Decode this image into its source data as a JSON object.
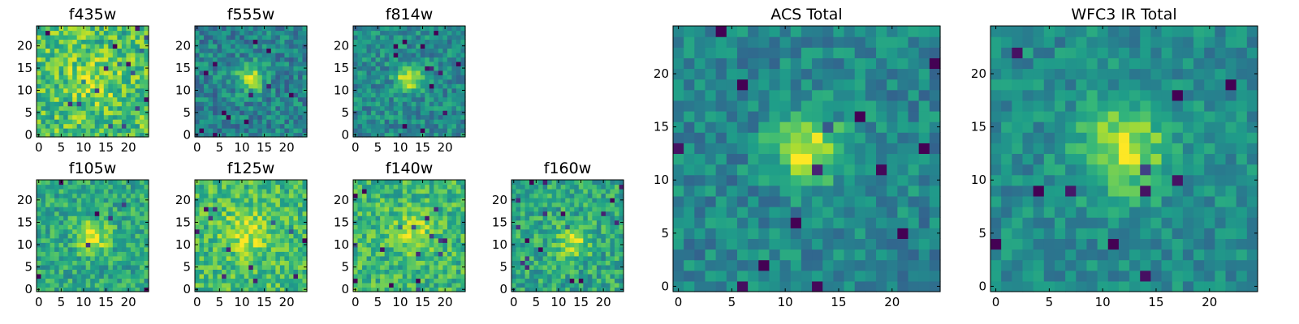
{
  "colormap": {
    "name": "viridis",
    "stops": [
      "#440154",
      "#482878",
      "#3e4989",
      "#31688e",
      "#26828e",
      "#1f9e89",
      "#35b779",
      "#6ece58",
      "#b5de2b",
      "#fde725"
    ]
  },
  "chart_data": [
    {
      "type": "heatmap",
      "title": "f435w",
      "image_size": [
        25,
        25
      ],
      "xlim": [
        0,
        24
      ],
      "ylim": [
        0,
        24
      ],
      "xticks": [
        0,
        5,
        10,
        15,
        20
      ],
      "yticks": [
        0,
        5,
        10,
        15,
        20
      ],
      "xticklabels": [
        "0",
        "5",
        "10",
        "15",
        "20"
      ],
      "yticklabels": [
        "0",
        "5",
        "10",
        "15",
        "20"
      ],
      "source": {
        "center": [
          12,
          12
        ],
        "peak": 0.18,
        "sigma": 4,
        "background": 0.7,
        "noise": 0.22,
        "seed": 11
      }
    },
    {
      "type": "heatmap",
      "title": "f555w",
      "image_size": [
        25,
        25
      ],
      "xlim": [
        0,
        24
      ],
      "ylim": [
        0,
        24
      ],
      "xticks": [
        0,
        5,
        10,
        15,
        20
      ],
      "yticks": [
        0,
        5,
        10,
        15,
        20
      ],
      "xticklabels": [
        "0",
        "5",
        "10",
        "15",
        "20"
      ],
      "yticklabels": [
        "0",
        "5",
        "10",
        "15",
        "20"
      ],
      "source": {
        "center": [
          12,
          13
        ],
        "peak": 0.45,
        "sigma": 2.2,
        "background": 0.45,
        "noise": 0.18,
        "seed": 23
      }
    },
    {
      "type": "heatmap",
      "title": "f814w",
      "image_size": [
        25,
        25
      ],
      "xlim": [
        0,
        24
      ],
      "ylim": [
        0,
        24
      ],
      "xticks": [
        0,
        5,
        10,
        15,
        20
      ],
      "yticks": [
        0,
        5,
        10,
        15,
        20
      ],
      "xticklabels": [
        "0",
        "5",
        "10",
        "15",
        "20"
      ],
      "yticklabels": [
        "0",
        "5",
        "10",
        "15",
        "20"
      ],
      "source": {
        "center": [
          12,
          13
        ],
        "peak": 0.5,
        "sigma": 2,
        "background": 0.48,
        "noise": 0.17,
        "seed": 37
      }
    },
    {
      "type": "heatmap",
      "title": "f105w",
      "image_size": [
        25,
        25
      ],
      "xlim": [
        0,
        24
      ],
      "ylim": [
        0,
        24
      ],
      "xticks": [
        0,
        5,
        10,
        15,
        20
      ],
      "yticks": [
        0,
        5,
        10,
        15,
        20
      ],
      "xticklabels": [
        "0",
        "5",
        "10",
        "15",
        "20"
      ],
      "yticklabels": [
        "0",
        "5",
        "10",
        "15",
        "20"
      ],
      "source": {
        "center": [
          12,
          12
        ],
        "peak": 0.35,
        "sigma": 2.5,
        "background": 0.6,
        "noise": 0.17,
        "seed": 41
      }
    },
    {
      "type": "heatmap",
      "title": "f125w",
      "image_size": [
        25,
        25
      ],
      "xlim": [
        0,
        24
      ],
      "ylim": [
        0,
        24
      ],
      "xticks": [
        0,
        5,
        10,
        15,
        20
      ],
      "yticks": [
        0,
        5,
        10,
        15,
        20
      ],
      "xticklabels": [
        "0",
        "5",
        "10",
        "15",
        "20"
      ],
      "yticklabels": [
        "0",
        "5",
        "10",
        "15",
        "20"
      ],
      "source": {
        "center": [
          11,
          13
        ],
        "peak": 0.25,
        "sigma": 3.5,
        "background": 0.68,
        "noise": 0.18,
        "seed": 53
      }
    },
    {
      "type": "heatmap",
      "title": "f140w",
      "image_size": [
        25,
        25
      ],
      "xlim": [
        0,
        24
      ],
      "ylim": [
        0,
        24
      ],
      "xticks": [
        0,
        5,
        10,
        15,
        20
      ],
      "yticks": [
        0,
        5,
        10,
        15,
        20
      ],
      "xticklabels": [
        "0",
        "5",
        "10",
        "15",
        "20"
      ],
      "yticklabels": [
        "0",
        "5",
        "10",
        "15",
        "20"
      ],
      "source": {
        "center": [
          13,
          13
        ],
        "peak": 0.25,
        "sigma": 3,
        "background": 0.66,
        "noise": 0.18,
        "seed": 67
      }
    },
    {
      "type": "heatmap",
      "title": "f160w",
      "image_size": [
        25,
        25
      ],
      "xlim": [
        0,
        24
      ],
      "ylim": [
        0,
        24
      ],
      "xticks": [
        0,
        5,
        10,
        15,
        20
      ],
      "yticks": [
        0,
        5,
        10,
        15,
        20
      ],
      "xticklabels": [
        "0",
        "5",
        "10",
        "15",
        "20"
      ],
      "yticklabels": [
        "0",
        "5",
        "10",
        "15",
        "20"
      ],
      "source": {
        "center": [
          13,
          11
        ],
        "peak": 0.3,
        "sigma": 2.5,
        "background": 0.6,
        "noise": 0.18,
        "seed": 79
      }
    },
    {
      "type": "heatmap",
      "title": "ACS Total",
      "image_size": [
        25,
        25
      ],
      "xlim": [
        0,
        24
      ],
      "ylim": [
        0,
        24
      ],
      "xticks": [
        0,
        5,
        10,
        15,
        20
      ],
      "yticks": [
        0,
        5,
        10,
        15,
        20
      ],
      "xticklabels": [
        "0",
        "5",
        "10",
        "15",
        "20"
      ],
      "yticklabels": [
        "0",
        "5",
        "10",
        "15",
        "20"
      ],
      "source": {
        "center": [
          12,
          13
        ],
        "peak": 0.5,
        "sigma": 2.3,
        "background": 0.46,
        "noise": 0.15,
        "seed": 97
      }
    },
    {
      "type": "heatmap",
      "title": "WFC3 IR Total",
      "image_size": [
        25,
        25
      ],
      "xlim": [
        0,
        24
      ],
      "ylim": [
        0,
        24
      ],
      "xticks": [
        0,
        5,
        10,
        15,
        20
      ],
      "yticks": [
        0,
        5,
        10,
        15,
        20
      ],
      "xticklabels": [
        "0",
        "5",
        "10",
        "15",
        "20"
      ],
      "yticklabels": [
        "0",
        "5",
        "10",
        "15",
        "20"
      ],
      "source": {
        "center": [
          12,
          13
        ],
        "peak": 0.42,
        "sigma": 3,
        "background": 0.48,
        "noise": 0.13,
        "seed": 113
      }
    }
  ]
}
